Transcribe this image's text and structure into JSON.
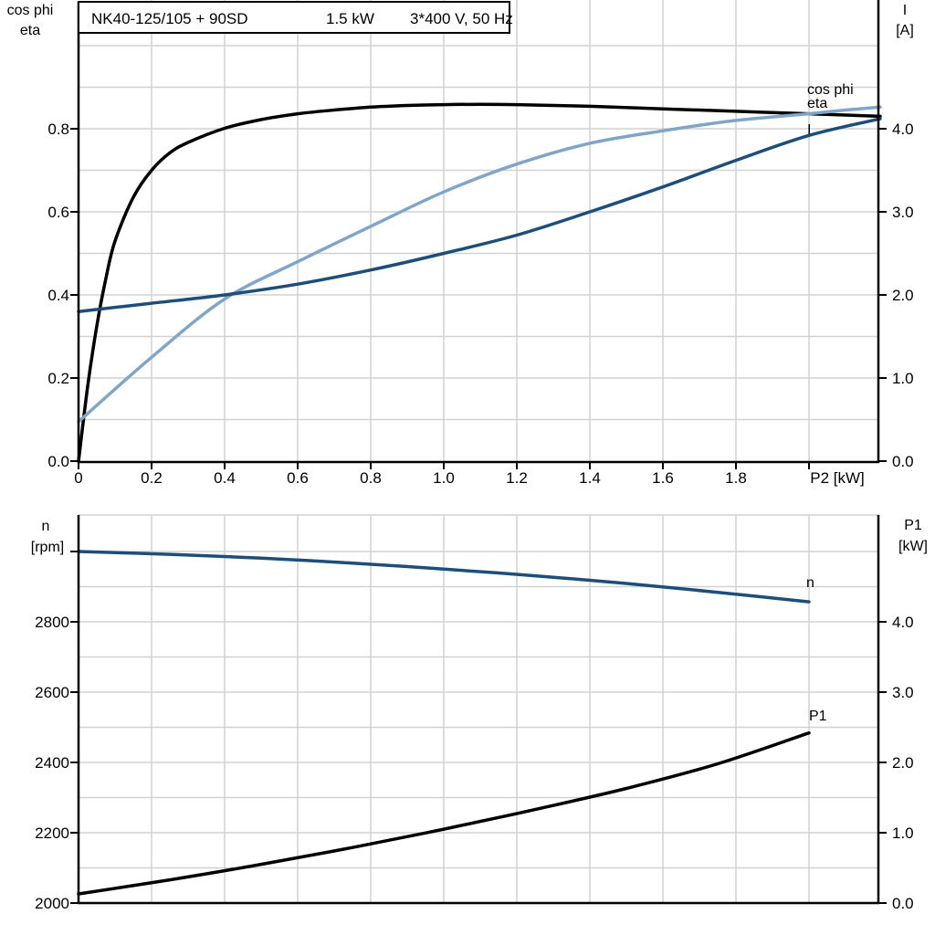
{
  "title": {
    "parts": [
      "NK40-125/105 + 90SD",
      "1.5 kW",
      "3*400 V, 50 Hz"
    ]
  },
  "colors": {
    "black": "#000000",
    "dark_blue": "#1d4e79",
    "light_blue": "#7fa5c9",
    "grid": "#d2d2d4",
    "axis": "#000000",
    "background": "#ffffff"
  },
  "chart_data": [
    {
      "type": "line",
      "title": "NK40-125/105 + 90SD  1.5 kW  3*400 V, 50 Hz",
      "xlabel": "P2 [kW]",
      "x_range": [
        0,
        2.195
      ],
      "x_tick_values": [
        0,
        0.2,
        0.4,
        0.6,
        0.8,
        1.0,
        1.2,
        1.4,
        1.6,
        1.8,
        2.0
      ],
      "x_tick_labels": [
        "0",
        "0.2",
        "0.4",
        "0.6",
        "0.8",
        "1.0",
        "1.2",
        "1.4",
        "1.6",
        "1.8",
        ""
      ],
      "grid_x_step": 0.2,
      "left_axis": {
        "title_lines": [
          "cos phi",
          "eta"
        ],
        "range": [
          0,
          1.0
        ],
        "tick_values": [
          0,
          0.2,
          0.4,
          0.6,
          0.8
        ],
        "tick_labels": [
          "0.0",
          "0.2",
          "0.4",
          "0.6",
          "0.8"
        ],
        "grid_step": 0.1
      },
      "right_axis": {
        "title_lines": [
          "I",
          "[A]"
        ],
        "range": [
          0,
          5
        ],
        "tick_values": [
          0,
          1,
          2,
          3,
          4
        ],
        "tick_labels": [
          "0.0",
          "1.0",
          "2.0",
          "3.0",
          "4.0"
        ]
      },
      "series": [
        {
          "name": "eta",
          "label": "eta",
          "axis": "left",
          "color_key": "black",
          "x": [
            0,
            0.025,
            0.05,
            0.075,
            0.1,
            0.15,
            0.2,
            0.25,
            0.3,
            0.4,
            0.5,
            0.6,
            0.7,
            0.8,
            0.9,
            1.0,
            1.1,
            1.2,
            1.4,
            1.6,
            1.8,
            2.0,
            2.1,
            2.195
          ],
          "y": [
            0,
            0.18,
            0.325,
            0.44,
            0.53,
            0.635,
            0.7,
            0.742,
            0.767,
            0.801,
            0.822,
            0.836,
            0.845,
            0.852,
            0.856,
            0.858,
            0.859,
            0.858,
            0.854,
            0.848,
            0.842,
            0.836,
            0.833,
            0.83
          ]
        },
        {
          "name": "cos phi",
          "label": "cos phi",
          "axis": "left",
          "color_key": "light_blue",
          "x": [
            0,
            0.2,
            0.4,
            0.6,
            0.8,
            1.0,
            1.2,
            1.4,
            1.6,
            1.8,
            2.0,
            2.1,
            2.195
          ],
          "y": [
            0.095,
            0.25,
            0.39,
            0.48,
            0.565,
            0.648,
            0.715,
            0.765,
            0.795,
            0.82,
            0.836,
            0.845,
            0.852
          ]
        },
        {
          "name": "I",
          "label": "I",
          "axis": "right",
          "color_key": "dark_blue",
          "x": [
            0,
            0.2,
            0.4,
            0.6,
            0.8,
            1.0,
            1.2,
            1.4,
            1.6,
            1.8,
            2.0,
            2.195
          ],
          "y": [
            1.8,
            1.9,
            2.0,
            2.13,
            2.3,
            2.5,
            2.72,
            3.0,
            3.3,
            3.62,
            3.92,
            4.12
          ]
        }
      ]
    },
    {
      "type": "line",
      "title": "",
      "xlabel": "",
      "x_range": [
        0,
        2.195
      ],
      "x_tick_values": [],
      "x_tick_labels": [],
      "grid_x_step": 0.2,
      "left_axis": {
        "title_lines": [
          "n",
          "[rpm]"
        ],
        "range": [
          2000,
          3100
        ],
        "tick_values": [
          2000,
          2200,
          2400,
          2600,
          2800,
          3000
        ],
        "tick_labels": [
          "2000",
          "2200",
          "2400",
          "2600",
          "2800",
          ""
        ],
        "grid_step": 100
      },
      "right_axis": {
        "title_lines": [
          "P1",
          "[kW]"
        ],
        "range": [
          0,
          5.5
        ],
        "tick_values": [
          0,
          1,
          2,
          3,
          4
        ],
        "tick_labels": [
          "0.0",
          "1.0",
          "2.0",
          "3.0",
          "4.0"
        ]
      },
      "series": [
        {
          "name": "n",
          "label": "n",
          "axis": "left",
          "color_key": "dark_blue",
          "x": [
            0,
            0.25,
            0.5,
            0.75,
            1.0,
            1.25,
            1.5,
            1.75,
            2.0
          ],
          "y": [
            3000,
            2992,
            2981,
            2967,
            2950,
            2931,
            2909,
            2884,
            2857
          ]
        },
        {
          "name": "P1",
          "label": "P1",
          "axis": "right",
          "color_key": "black",
          "x": [
            0,
            0.25,
            0.5,
            0.75,
            1.0,
            1.25,
            1.5,
            1.75,
            2.0
          ],
          "y": [
            0.13,
            0.33,
            0.55,
            0.79,
            1.05,
            1.33,
            1.63,
            1.98,
            2.42
          ]
        }
      ]
    }
  ]
}
